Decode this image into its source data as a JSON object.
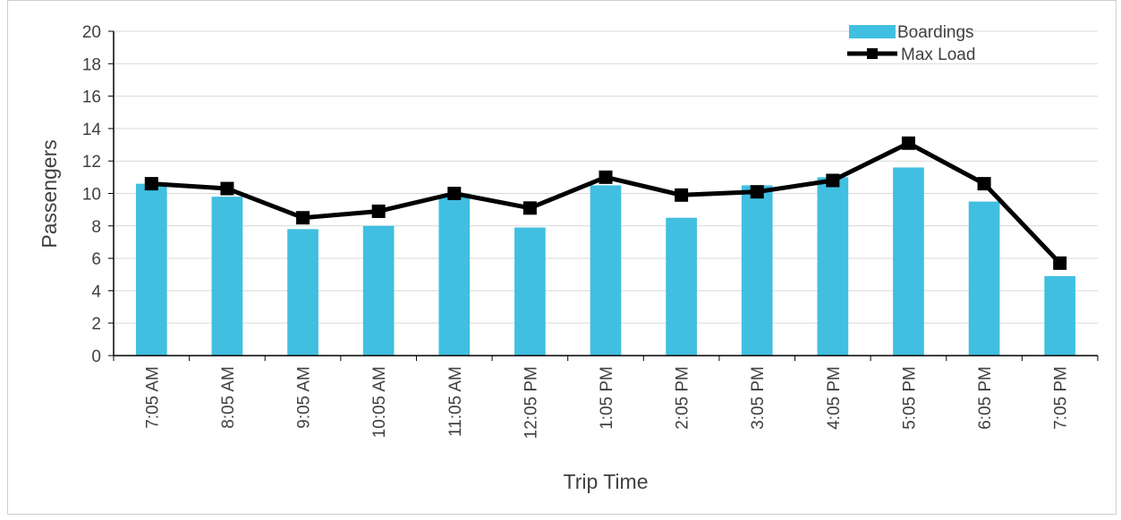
{
  "chart_data": {
    "type": "bar",
    "title": "",
    "xlabel": "Trip Time",
    "ylabel": "Passengers",
    "ylim": [
      0,
      20
    ],
    "yticks": [
      0,
      2,
      4,
      6,
      8,
      10,
      12,
      14,
      16,
      18,
      20
    ],
    "grid": "horizontal",
    "legend_position": "top-right",
    "categories": [
      "7:05 AM",
      "8:05 AM",
      "9:05 AM",
      "10:05 AM",
      "11:05 AM",
      "12:05 PM",
      "1:05 PM",
      "2:05 PM",
      "3:05 PM",
      "4:05 PM",
      "5:05 PM",
      "6:05 PM",
      "7:05 PM"
    ],
    "series": [
      {
        "name": "Boardings",
        "kind": "bar",
        "color": "#41bfe0",
        "values": [
          10.6,
          9.8,
          7.8,
          8.0,
          9.8,
          7.9,
          10.5,
          8.5,
          10.5,
          11.0,
          11.6,
          9.5,
          4.9
        ]
      },
      {
        "name": "Max Load",
        "kind": "line",
        "color": "#000000",
        "values": [
          10.6,
          10.3,
          8.5,
          8.9,
          10.0,
          9.1,
          11.0,
          9.9,
          10.1,
          10.8,
          13.1,
          10.6,
          5.7
        ]
      }
    ]
  }
}
